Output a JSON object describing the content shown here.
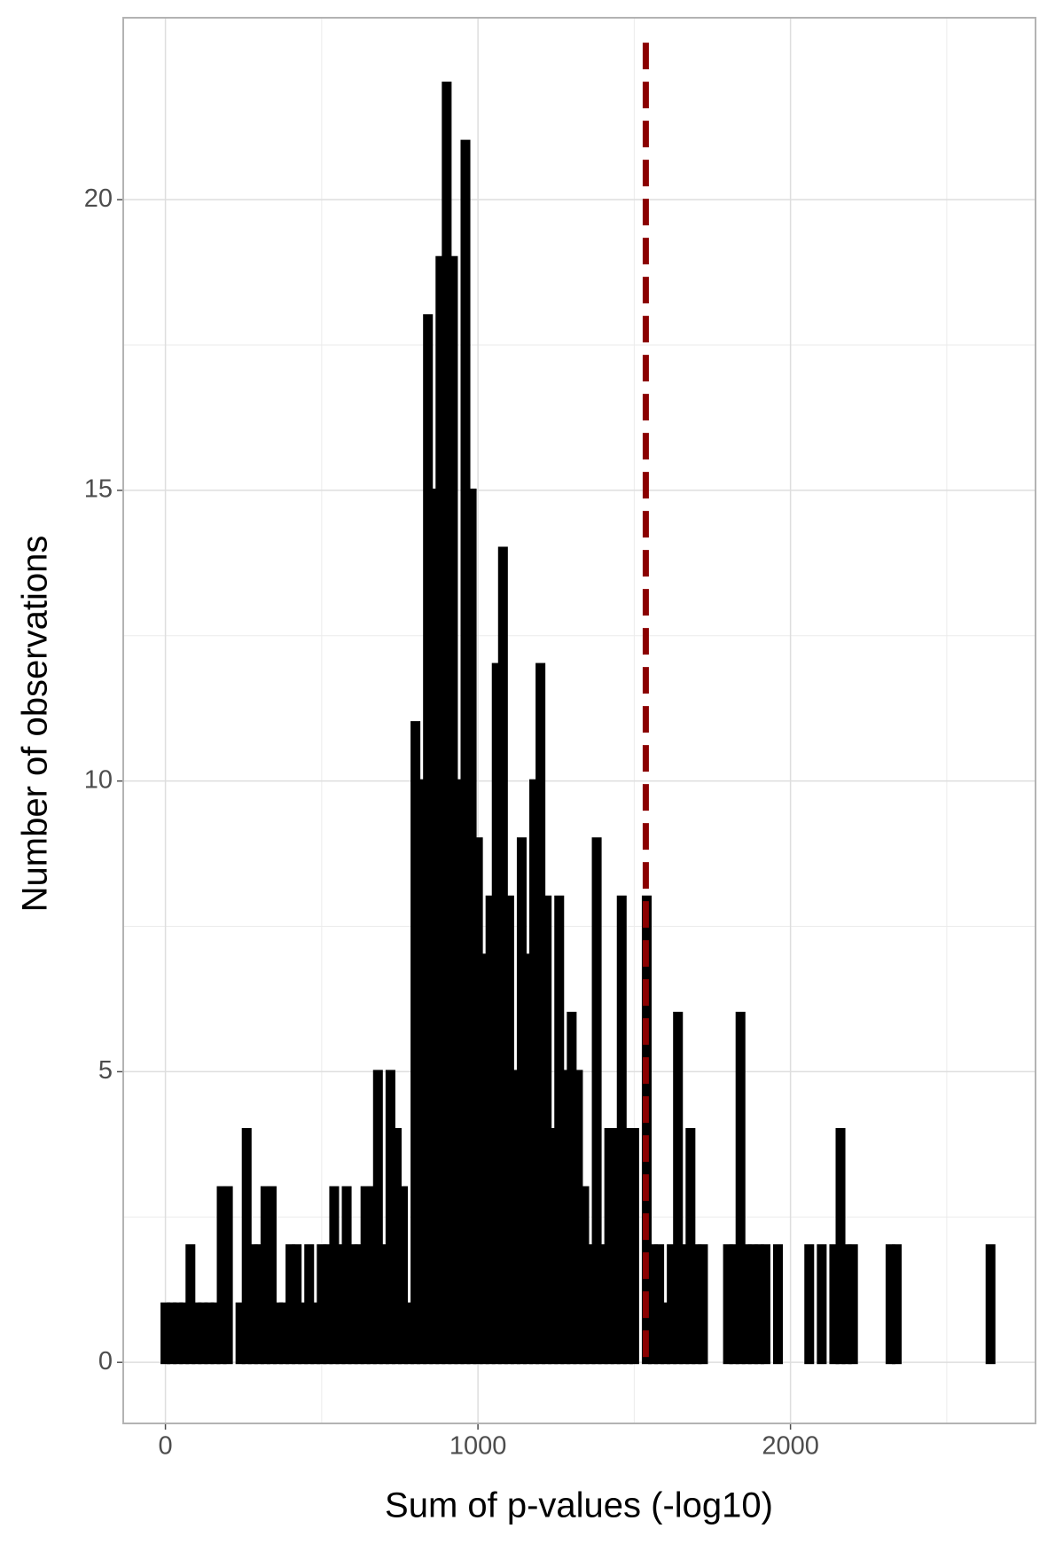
{
  "chart_data": {
    "type": "histogram",
    "xlabel": "Sum of p-values (-log10)",
    "ylabel": "Number of observations",
    "color": "#000000",
    "bins": [
      -10,
      10,
      30,
      50,
      70,
      90,
      110,
      130,
      150,
      170,
      190,
      210,
      230,
      250,
      270,
      290,
      310,
      330,
      350,
      370,
      390,
      410,
      430,
      450,
      470,
      490,
      510,
      530,
      550,
      570,
      590,
      610,
      630,
      650,
      670,
      690,
      710,
      730,
      750,
      770,
      790,
      810,
      830,
      850,
      870,
      890,
      910,
      930,
      950,
      970,
      990,
      1010,
      1030,
      1050,
      1070,
      1090,
      1110,
      1130,
      1150,
      1170,
      1190,
      1210,
      1230,
      1250,
      1270,
      1290,
      1310,
      1330,
      1350,
      1370,
      1390,
      1410,
      1430,
      1450,
      1470,
      1490,
      1510,
      1530,
      1550,
      1570,
      1590,
      1610,
      1630,
      1650,
      1670,
      1690,
      1710,
      1730,
      1750,
      1770,
      1790,
      1810,
      1830,
      1850,
      1870,
      1890,
      1910,
      1930,
      1950,
      1970,
      1990,
      2010,
      2030,
      2050,
      2070,
      2090,
      2110,
      2130,
      2150,
      2170,
      2190,
      2210,
      2230,
      2250,
      2270,
      2290,
      2310,
      2330,
      2350,
      2370,
      2390,
      2410,
      2430,
      2450,
      2470,
      2490,
      2510,
      2530,
      2550,
      2570,
      2590,
      2610,
      2630,
      2650
    ],
    "values": [
      1,
      1,
      1,
      1,
      2,
      1,
      1,
      1,
      1,
      3,
      3,
      0,
      1,
      4,
      2,
      2,
      3,
      3,
      1,
      1,
      2,
      2,
      1,
      2,
      1,
      2,
      2,
      3,
      2,
      3,
      2,
      2,
      3,
      3,
      5,
      2,
      5,
      4,
      3,
      1,
      11,
      10,
      18,
      15,
      19,
      22,
      19,
      10,
      21,
      15,
      9,
      7,
      8,
      12,
      14,
      8,
      5,
      9,
      7,
      10,
      12,
      8,
      4,
      8,
      5,
      6,
      5,
      3,
      2,
      9,
      2,
      4,
      4,
      8,
      4,
      4,
      0,
      8,
      2,
      2,
      1,
      2,
      6,
      2,
      4,
      2,
      2,
      0,
      0,
      0,
      2,
      2,
      6,
      2,
      2,
      2,
      2,
      0,
      2,
      0,
      0,
      0,
      0,
      2,
      0,
      2,
      0,
      2,
      4,
      2,
      2,
      0,
      0,
      0,
      0,
      0,
      2,
      2,
      0,
      0,
      0,
      0,
      0,
      0,
      0,
      0,
      0,
      0,
      0,
      0,
      0,
      0,
      2
    ],
    "vline": 1537,
    "vline_color": "#8b0000",
    "xlim": [
      -135,
      2784
    ],
    "ylim": [
      -1.05,
      23.13
    ],
    "xticks": [
      0,
      1000,
      2000
    ],
    "yticks": [
      0,
      5,
      10,
      15,
      20
    ],
    "xminor": [
      500,
      1500,
      2500
    ],
    "yminor": [
      2.5,
      7.5,
      12.5,
      17.5
    ],
    "grid": true
  }
}
